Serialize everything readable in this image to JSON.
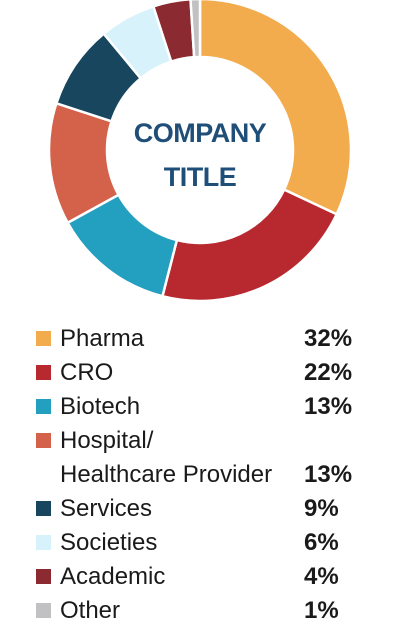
{
  "chart_data": {
    "type": "pie",
    "donut": true,
    "title": "COMPANY TITLE",
    "title_lines": [
      "COMPANY",
      "TITLE"
    ],
    "categories": [
      "Pharma",
      "CRO",
      "Biotech",
      "Hospital/ Healthcare Provider",
      "Services",
      "Societies",
      "Academic",
      "Other"
    ],
    "values": [
      32,
      22,
      13,
      13,
      9,
      6,
      4,
      1
    ],
    "value_labels": [
      "32%",
      "22%",
      "13%",
      "13%",
      "9%",
      "6%",
      "4%",
      "1%"
    ],
    "colors": [
      "#f2ac4e",
      "#b8282f",
      "#239fbf",
      "#d4614a",
      "#17465e",
      "#d7f2fa",
      "#8b2a30",
      "#c1c1c3"
    ],
    "legend_placement": "bottom"
  },
  "legend": {
    "items": [
      {
        "label": "Pharma",
        "value": "32%",
        "color": "#f2ac4e"
      },
      {
        "label": "CRO",
        "value": "22%",
        "color": "#b8282f"
      },
      {
        "label": "Biotech",
        "value": "13%",
        "color": "#239fbf"
      },
      {
        "label_line1": "Hospital/",
        "label_line2": "Healthcare Provider",
        "value": "13%",
        "color": "#d4614a"
      },
      {
        "label": "Services",
        "value": "9%",
        "color": "#17465e"
      },
      {
        "label": "Societies",
        "value": "6%",
        "color": "#d7f2fa"
      },
      {
        "label": "Academic",
        "value": "4%",
        "color": "#8b2a30"
      },
      {
        "label": "Other",
        "value": "1%",
        "color": "#c1c1c3"
      }
    ]
  }
}
